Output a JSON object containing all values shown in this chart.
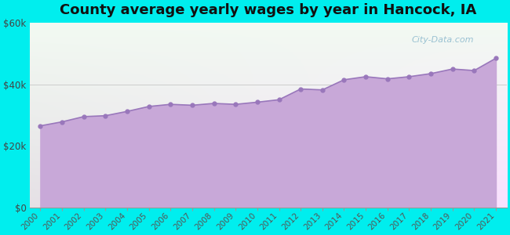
{
  "title": "County average yearly wages by year in Hancock, IA",
  "years": [
    2000,
    2001,
    2002,
    2003,
    2004,
    2005,
    2006,
    2007,
    2008,
    2009,
    2010,
    2011,
    2012,
    2013,
    2014,
    2015,
    2016,
    2017,
    2018,
    2019,
    2020,
    2021
  ],
  "wages": [
    26500,
    27800,
    29500,
    29800,
    31200,
    32800,
    33500,
    33200,
    33800,
    33500,
    34200,
    35000,
    38500,
    38200,
    41500,
    42500,
    41800,
    42500,
    43500,
    45000,
    44500,
    48500
  ],
  "fill_color": "#c8a8d8",
  "fill_alpha": 1.0,
  "line_color": "#9977bb",
  "marker_color": "#9977bb",
  "bg_outer_color": "#00eeee",
  "ylim": [
    0,
    60000
  ],
  "yticks": [
    0,
    20000,
    40000,
    60000
  ],
  "ytick_labels": [
    "$0",
    "$20k",
    "$40k",
    "$60k"
  ],
  "title_fontsize": 13,
  "watermark": "City-Data.com"
}
